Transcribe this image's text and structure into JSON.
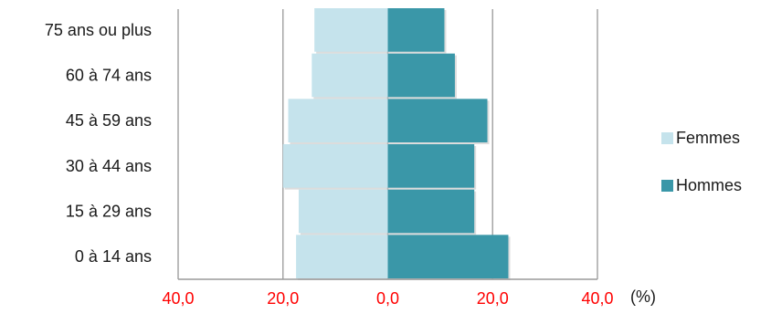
{
  "chart_data": {
    "type": "bar",
    "orientation": "horizontal",
    "layout": "population-pyramid",
    "categories": [
      "0 à 14 ans",
      "15 à 29 ans",
      "30 à 44 ans",
      "45 à 59 ans",
      "60 à 74 ans",
      "75 ans ou plus"
    ],
    "series": [
      {
        "name": "Femmes",
        "side": "left",
        "color": "#c5e3ec",
        "values": [
          17.5,
          17.0,
          20.0,
          19.0,
          14.5,
          14.0
        ]
      },
      {
        "name": "Hommes",
        "side": "right",
        "color": "#3a97a8",
        "values": [
          23.0,
          16.5,
          16.5,
          19.0,
          12.8,
          10.8
        ]
      }
    ],
    "xlim": [
      -40,
      40
    ],
    "xticks": [
      "40,0",
      "20,0",
      "0,0",
      "20,0",
      "40,0"
    ],
    "tick_label_color": "#ff0000",
    "unit_label": "(%)",
    "grid": true,
    "legend_position": "right"
  }
}
